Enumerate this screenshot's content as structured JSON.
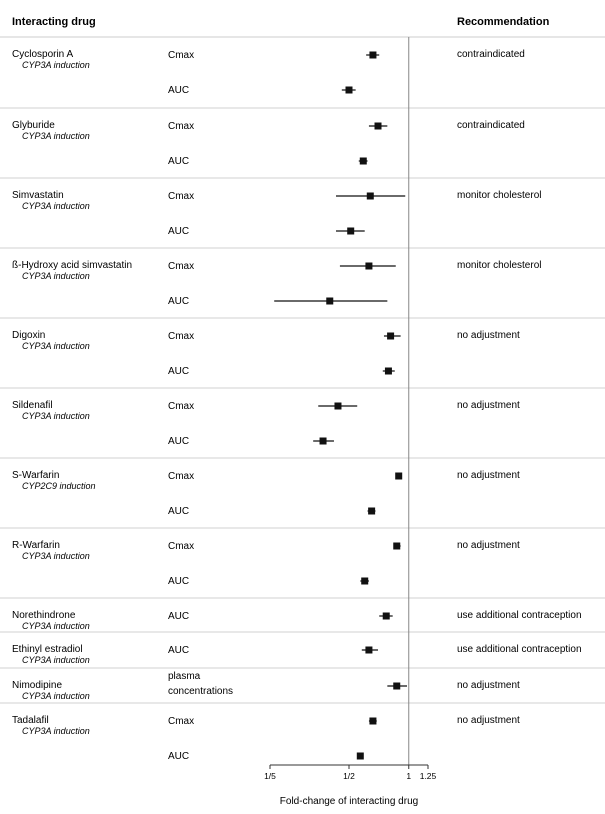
{
  "headers": {
    "drug": "Interacting drug",
    "recommendation": "Recommendation"
  },
  "chart_data": {
    "type": "forest",
    "xlabel": "Fold-change of interacting drug",
    "x_scale": "log",
    "xlim": [
      0.2,
      1.25
    ],
    "reference_line": 1,
    "ticks": [
      {
        "value": 0.2,
        "label": "1/5"
      },
      {
        "value": 0.5,
        "label": "1/2"
      },
      {
        "value": 1,
        "label": "1"
      },
      {
        "value": 1.25,
        "label": "1.25"
      }
    ],
    "groups": [
      {
        "drug": "Cyclosporin A",
        "mechanism": "CYP3A induction",
        "recommendation": "contraindicated",
        "measures": [
          {
            "label": "Cmax",
            "est": 0.66,
            "lo": 0.61,
            "hi": 0.71
          },
          {
            "label": "AUC",
            "est": 0.5,
            "lo": 0.46,
            "hi": 0.54
          }
        ]
      },
      {
        "drug": "Glyburide",
        "mechanism": "CYP3A induction",
        "recommendation": "contraindicated",
        "measures": [
          {
            "label": "Cmax",
            "est": 0.7,
            "lo": 0.63,
            "hi": 0.78
          },
          {
            "label": "AUC",
            "est": 0.59,
            "lo": 0.56,
            "hi": 0.62
          }
        ]
      },
      {
        "drug": "Simvastatin",
        "mechanism": "CYP3A induction",
        "recommendation": "monitor cholesterol",
        "measures": [
          {
            "label": "Cmax",
            "est": 0.64,
            "lo": 0.43,
            "hi": 0.96
          },
          {
            "label": "AUC",
            "est": 0.51,
            "lo": 0.43,
            "hi": 0.6
          }
        ]
      },
      {
        "drug": "ß-Hydroxy acid simvastatin",
        "mechanism": "CYP3A induction",
        "recommendation": "monitor cholesterol",
        "measures": [
          {
            "label": "Cmax",
            "est": 0.63,
            "lo": 0.45,
            "hi": 0.86
          },
          {
            "label": "AUC",
            "est": 0.4,
            "lo": 0.21,
            "hi": 0.78
          }
        ]
      },
      {
        "drug": "Digoxin",
        "mechanism": "CYP3A induction",
        "recommendation": "no adjustment",
        "measures": [
          {
            "label": "Cmax",
            "est": 0.81,
            "lo": 0.75,
            "hi": 0.91
          },
          {
            "label": "AUC",
            "est": 0.79,
            "lo": 0.74,
            "hi": 0.85
          }
        ]
      },
      {
        "drug": "Sildenafil",
        "mechanism": "CYP3A induction",
        "recommendation": "no adjustment",
        "measures": [
          {
            "label": "Cmax",
            "est": 0.44,
            "lo": 0.35,
            "hi": 0.55
          },
          {
            "label": "AUC",
            "est": 0.37,
            "lo": 0.33,
            "hi": 0.42
          }
        ]
      },
      {
        "drug": "S-Warfarin",
        "mechanism": "CYP2C9 induction",
        "recommendation": "no adjustment",
        "measures": [
          {
            "label": "Cmax",
            "est": 0.89,
            "lo": 0.86,
            "hi": 0.92
          },
          {
            "label": "AUC",
            "est": 0.65,
            "lo": 0.62,
            "hi": 0.68
          }
        ]
      },
      {
        "drug": "R-Warfarin",
        "mechanism": "CYP3A induction",
        "recommendation": "no adjustment",
        "measures": [
          {
            "label": "Cmax",
            "est": 0.87,
            "lo": 0.84,
            "hi": 0.91
          },
          {
            "label": "AUC",
            "est": 0.6,
            "lo": 0.57,
            "hi": 0.63
          }
        ]
      },
      {
        "drug": "Norethindrone",
        "mechanism": "CYP3A induction",
        "recommendation": "use additional contraception",
        "measures": [
          {
            "label": "AUC",
            "est": 0.77,
            "lo": 0.71,
            "hi": 0.83
          }
        ]
      },
      {
        "drug": "Ethinyl estradiol",
        "mechanism": "CYP3A induction",
        "recommendation": "use additional contraception",
        "measures": [
          {
            "label": "AUC",
            "est": 0.63,
            "lo": 0.58,
            "hi": 0.7
          }
        ]
      },
      {
        "drug": "Nimodipine",
        "mechanism": "CYP3A induction",
        "recommendation": "no adjustment",
        "measures": [
          {
            "label": "plasma concentrations",
            "est": 0.87,
            "lo": 0.78,
            "hi": 0.98
          }
        ]
      },
      {
        "drug": "Tadalafil",
        "mechanism": "CYP3A induction",
        "recommendation": "no adjustment",
        "measures": [
          {
            "label": "Cmax",
            "est": 0.66,
            "lo": 0.63,
            "hi": 0.69
          },
          {
            "label": "AUC",
            "est": 0.57,
            "lo": 0.55,
            "hi": 0.59
          }
        ]
      }
    ]
  }
}
